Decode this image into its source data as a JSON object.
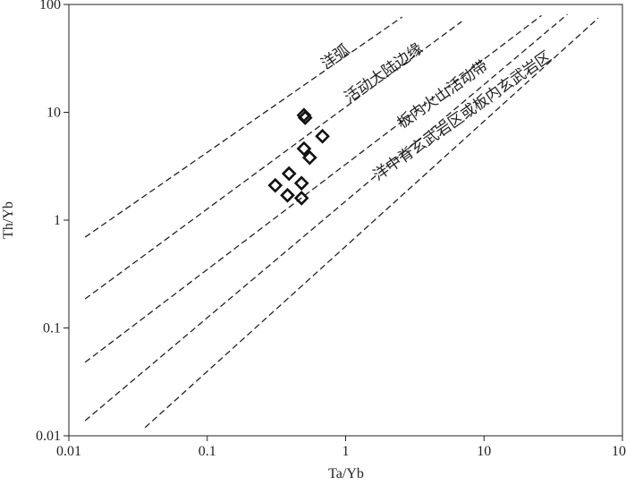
{
  "chart_data": {
    "type": "scatter",
    "xlabel": "Ta/Yb",
    "ylabel": "Th/Yb",
    "xscale": "log",
    "yscale": "log",
    "xlim": [
      0.01,
      100
    ],
    "ylim": [
      0.01,
      100
    ],
    "xticks": [
      0.01,
      0.1,
      1,
      10,
      100
    ],
    "yticks": [
      0.01,
      0.1,
      1,
      10,
      100
    ],
    "color": "#111111",
    "x": [
      0.5,
      0.51,
      0.68,
      0.5,
      0.55,
      0.39,
      0.31,
      0.48,
      0.38,
      0.48
    ],
    "y": [
      9.4,
      8.9,
      6.0,
      4.6,
      3.8,
      2.7,
      2.1,
      2.2,
      1.7,
      1.6
    ],
    "reference_lines": [
      {
        "x": [
          0.0131,
          2.56
        ],
        "y": [
          0.695,
          76.5
        ]
      },
      {
        "x": [
          0.0131,
          6.9
        ],
        "y": [
          0.186,
          69.5
        ]
      },
      {
        "x": [
          0.0131,
          26
        ],
        "y": [
          0.048,
          79
        ]
      },
      {
        "x": [
          0.0131,
          40
        ],
        "y": [
          0.0138,
          81
        ]
      },
      {
        "x": [
          0.0355,
          67
        ],
        "y": [
          0.0119,
          75
        ]
      }
    ],
    "annotations": [
      "洋弧",
      "活动大陆边缘",
      "板内火山活动带",
      "洋中脊玄武岩区或板内玄武岩区"
    ]
  }
}
